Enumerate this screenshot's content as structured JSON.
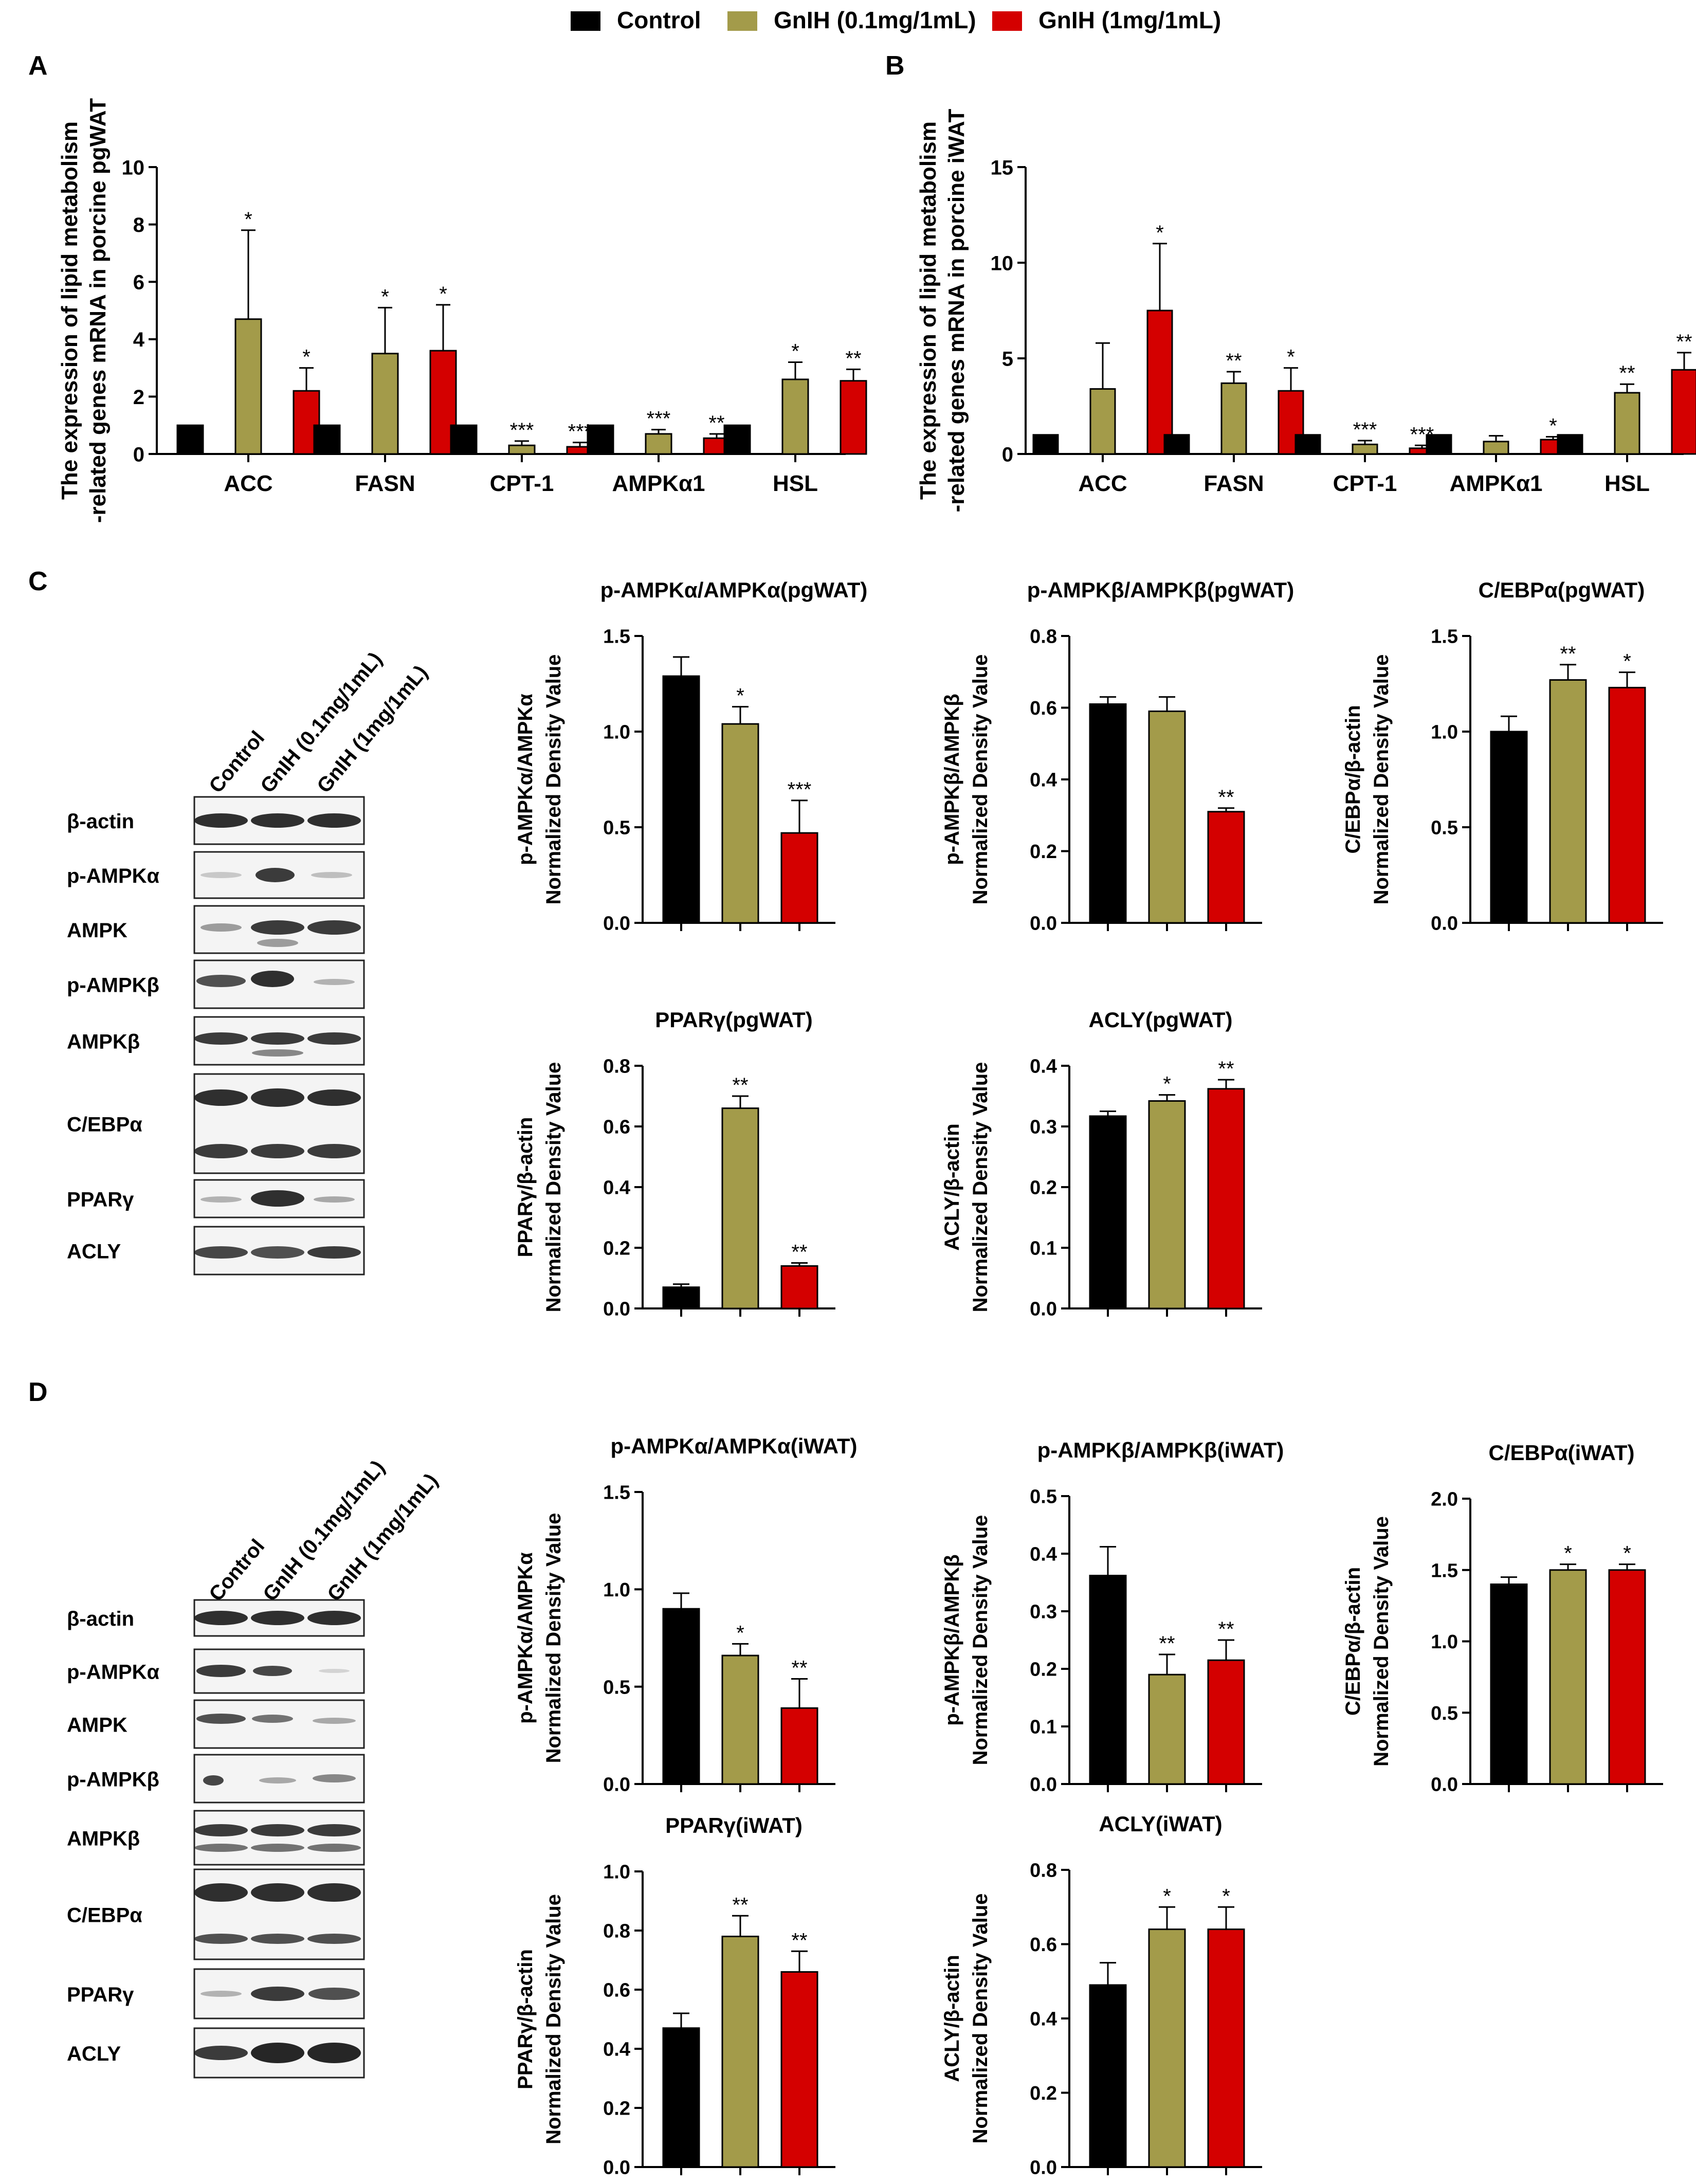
{
  "legend": {
    "items": [
      {
        "label": "Control",
        "color": "#000000"
      },
      {
        "label": "GnIH (0.1mg/1mL)",
        "color": "#a39b4a"
      },
      {
        "label": "GnIH (1mg/1mL)",
        "color": "#d40000"
      }
    ]
  },
  "colors": {
    "control": "#000000",
    "low": "#a39b4a",
    "high": "#d40000"
  },
  "panel_labels": [
    "A",
    "B",
    "C",
    "D"
  ],
  "blots": [
    {
      "panel": "C",
      "lanes": [
        "Control",
        "GnIH (0.1mg/1mL)",
        "GnIH (1mg/1mL)"
      ],
      "rows": [
        "β-actin",
        "p-AMPKα",
        "AMPK",
        "p-AMPKβ",
        "AMPKβ",
        "C/EBPα",
        "PPARγ",
        "ACLY"
      ]
    },
    {
      "panel": "D",
      "lanes": [
        "Control",
        "GnIH (0.1mg/1mL)",
        "GnIH (1mg/1mL)"
      ],
      "rows": [
        "β-actin",
        "p-AMPKα",
        "AMPK",
        "p-AMPKβ",
        "AMPKβ",
        "C/EBPα",
        "PPARγ",
        "ACLY"
      ]
    }
  ],
  "chart_data": [
    {
      "id": "A",
      "type": "bar",
      "title": "",
      "ylabel": [
        "The expression of lipid metabolism",
        "-related genes mRNA in porcine pgWAT"
      ],
      "ylim": [
        0,
        10
      ],
      "yticks": [
        "0",
        "2",
        "4",
        "6",
        "8",
        "10"
      ],
      "categories": [
        "ACC",
        "FASN",
        "CPT-1",
        "AMPKα1",
        "HSL"
      ],
      "series": [
        {
          "name": "Control",
          "values": [
            1,
            1,
            1,
            1,
            1
          ],
          "errors": [
            0,
            0,
            0,
            0,
            0
          ],
          "sig": [
            "",
            "",
            "",
            "",
            ""
          ]
        },
        {
          "name": "GnIH (0.1mg/1mL)",
          "values": [
            4.7,
            3.5,
            0.3,
            0.7,
            2.6
          ],
          "errors": [
            3.1,
            1.6,
            0.15,
            0.15,
            0.6
          ],
          "sig": [
            "*",
            "*",
            "***",
            "***",
            "*"
          ]
        },
        {
          "name": "GnIH (1mg/1mL)",
          "values": [
            2.2,
            3.6,
            0.25,
            0.55,
            2.55
          ],
          "errors": [
            0.8,
            1.6,
            0.15,
            0.15,
            0.4
          ],
          "sig": [
            "*",
            "*",
            "***",
            "**",
            "**"
          ]
        }
      ]
    },
    {
      "id": "B",
      "type": "bar",
      "title": "",
      "ylabel": [
        "The expression of lipid metabolism",
        "-related genes mRNA in porcine iWAT"
      ],
      "ylim": [
        0,
        15
      ],
      "yticks": [
        "0",
        "5",
        "10",
        "15"
      ],
      "categories": [
        "ACC",
        "FASN",
        "CPT-1",
        "AMPKα1",
        "HSL"
      ],
      "series": [
        {
          "name": "Control",
          "values": [
            1,
            1,
            1,
            1,
            1
          ],
          "errors": [
            0,
            0,
            0,
            0,
            0
          ],
          "sig": [
            "",
            "",
            "",
            "",
            ""
          ]
        },
        {
          "name": "GnIH (0.1mg/1mL)",
          "values": [
            3.4,
            3.7,
            0.5,
            0.65,
            3.2
          ],
          "errors": [
            2.4,
            0.6,
            0.2,
            0.3,
            0.45
          ],
          "sig": [
            "",
            "**",
            "***",
            "",
            "**"
          ]
        },
        {
          "name": "GnIH (1mg/1mL)",
          "values": [
            7.5,
            3.3,
            0.3,
            0.75,
            4.4
          ],
          "errors": [
            3.5,
            1.2,
            0.15,
            0.15,
            0.9
          ],
          "sig": [
            "*",
            "*",
            "***",
            "*",
            "**"
          ]
        }
      ]
    },
    {
      "id": "C1",
      "type": "bar",
      "title": "p-AMPKα/AMPKα(pgWAT)",
      "ylabel": [
        "p-AMPKα/AMPKα",
        "Normalized Density Value"
      ],
      "ylim": [
        0,
        1.5
      ],
      "yticks": [
        "0.0",
        "0.5",
        "1.0",
        "1.5"
      ],
      "values": [
        1.29,
        1.04,
        0.47
      ],
      "errors": [
        0.1,
        0.09,
        0.17
      ],
      "sig": [
        "",
        "*",
        "***"
      ]
    },
    {
      "id": "C2",
      "type": "bar",
      "title": "p-AMPKβ/AMPKβ(pgWAT)",
      "ylabel": [
        "p-AMPKβ/AMPKβ",
        "Normalized Density Value"
      ],
      "ylim": [
        0,
        0.8
      ],
      "yticks": [
        "0.0",
        "0.2",
        "0.4",
        "0.6",
        "0.8"
      ],
      "values": [
        0.61,
        0.59,
        0.31
      ],
      "errors": [
        0.02,
        0.04,
        0.01
      ],
      "sig": [
        "",
        "",
        "**"
      ]
    },
    {
      "id": "C3",
      "type": "bar",
      "title": "C/EBPα(pgWAT)",
      "ylabel": [
        "C/EBPα/β-actin",
        "Normalized Density Value"
      ],
      "ylim": [
        0,
        1.5
      ],
      "yticks": [
        "0.0",
        "0.5",
        "1.0",
        "1.5"
      ],
      "values": [
        1.0,
        1.27,
        1.23
      ],
      "errors": [
        0.08,
        0.08,
        0.08
      ],
      "sig": [
        "",
        "**",
        "*"
      ]
    },
    {
      "id": "C4",
      "type": "bar",
      "title": "PPARγ(pgWAT)",
      "ylabel": [
        "PPARγ/β-actin",
        "Normalized Density Value"
      ],
      "ylim": [
        0,
        0.8
      ],
      "yticks": [
        "0.0",
        "0.2",
        "0.4",
        "0.6",
        "0.8"
      ],
      "values": [
        0.07,
        0.66,
        0.14
      ],
      "errors": [
        0.01,
        0.04,
        0.01
      ],
      "sig": [
        "",
        "**",
        "**"
      ]
    },
    {
      "id": "C5",
      "type": "bar",
      "title": "ACLY(pgWAT)",
      "ylabel": [
        "ACLY/β-actin",
        "Normalized Density Value"
      ],
      "ylim": [
        0,
        0.4
      ],
      "yticks": [
        "0.0",
        "0.1",
        "0.2",
        "0.3",
        "0.4"
      ],
      "values": [
        0.317,
        0.342,
        0.362
      ],
      "errors": [
        0.008,
        0.01,
        0.015
      ],
      "sig": [
        "",
        "*",
        "**"
      ]
    },
    {
      "id": "D1",
      "type": "bar",
      "title": "p-AMPKα/AMPKα(iWAT)",
      "ylabel": [
        "p-AMPKα/AMPKα",
        "Normalized Density Value"
      ],
      "ylim": [
        0,
        1.5
      ],
      "yticks": [
        "0.0",
        "0.5",
        "1.0",
        "1.5"
      ],
      "values": [
        0.9,
        0.66,
        0.39
      ],
      "errors": [
        0.08,
        0.06,
        0.15
      ],
      "sig": [
        "",
        "*",
        "**"
      ]
    },
    {
      "id": "D2",
      "type": "bar",
      "title": "p-AMPKβ/AMPKβ(iWAT)",
      "ylabel": [
        "p-AMPKβ/AMPKβ",
        "Normalized Density Value"
      ],
      "ylim": [
        0,
        0.5
      ],
      "yticks": [
        "0.0",
        "0.1",
        "0.2",
        "0.3",
        "0.4",
        "0.5"
      ],
      "values": [
        0.362,
        0.19,
        0.215
      ],
      "errors": [
        0.05,
        0.035,
        0.035
      ],
      "sig": [
        "",
        "**",
        "**"
      ]
    },
    {
      "id": "D3",
      "type": "bar",
      "title": "C/EBPα(iWAT)",
      "ylabel": [
        "C/EBPα/β-actin",
        "Normalized Density Value"
      ],
      "ylim": [
        0,
        2.0
      ],
      "yticks": [
        "0.0",
        "0.5",
        "1.0",
        "1.5",
        "2.0"
      ],
      "values": [
        1.4,
        1.5,
        1.5
      ],
      "errors": [
        0.05,
        0.04,
        0.04
      ],
      "sig": [
        "",
        "*",
        "*"
      ]
    },
    {
      "id": "D4",
      "type": "bar",
      "title": "PPARγ(iWAT)",
      "ylabel": [
        "PPARγ/β-actin",
        "Normalized Density Value"
      ],
      "ylim": [
        0,
        1.0
      ],
      "yticks": [
        "0.0",
        "0.2",
        "0.4",
        "0.6",
        "0.8",
        "1.0"
      ],
      "values": [
        0.47,
        0.78,
        0.66
      ],
      "errors": [
        0.05,
        0.07,
        0.07
      ],
      "sig": [
        "",
        "**",
        "**"
      ]
    },
    {
      "id": "D5",
      "type": "bar",
      "title": "ACLY(iWAT)",
      "ylabel": [
        "ACLY/β-actin",
        "Normalized Density Value"
      ],
      "ylim": [
        0,
        0.8
      ],
      "yticks": [
        "0.0",
        "0.2",
        "0.4",
        "0.6",
        "0.8"
      ],
      "values": [
        0.49,
        0.64,
        0.64
      ],
      "errors": [
        0.06,
        0.06,
        0.06
      ],
      "sig": [
        "",
        "*",
        "*"
      ]
    }
  ]
}
